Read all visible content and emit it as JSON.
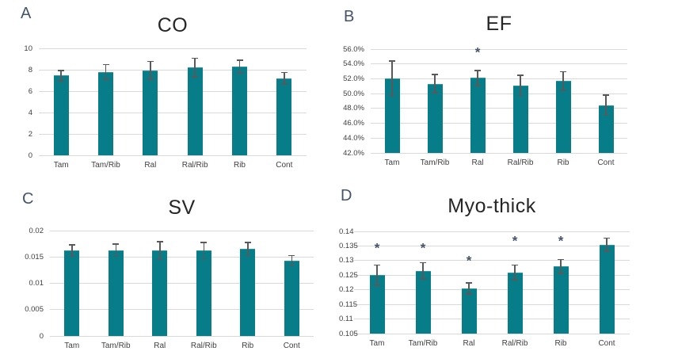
{
  "figure": {
    "background": "#ffffff",
    "colors": {
      "bar_fill": "#067d88",
      "error_bar": "#595959",
      "gridline": "#d9d9d9",
      "axis_text": "#404040",
      "title_text": "#262626",
      "panel_label": "#44546a",
      "asterisk": "#44546a"
    }
  },
  "chart_data": [
    {
      "type": "bar",
      "panel": "A",
      "title": "CO",
      "categories": [
        "Tam",
        "Tam/Rib",
        "Ral",
        "Ral/Rib",
        "Rib",
        "Cont"
      ],
      "values": [
        7.45,
        7.8,
        7.95,
        8.2,
        8.3,
        7.2
      ],
      "errors": [
        0.5,
        0.7,
        0.85,
        0.9,
        0.6,
        0.55
      ],
      "sig": [
        null,
        null,
        null,
        null,
        null,
        null
      ],
      "ylim": [
        0,
        10
      ],
      "yticks": [
        "0",
        "2",
        "4",
        "6",
        "8",
        "10"
      ],
      "xlabel": "",
      "ylabel": "",
      "grid": true,
      "legend": "none"
    },
    {
      "type": "bar",
      "panel": "B",
      "title": "EF",
      "categories": [
        "Tam",
        "Tam/Rib",
        "Ral",
        "Ral/Rib",
        "Rib",
        "Cont"
      ],
      "values": [
        52.0,
        51.35,
        52.1,
        51.1,
        51.7,
        48.45
      ],
      "errors": [
        2.4,
        1.25,
        1.05,
        1.4,
        1.3,
        1.4
      ],
      "sig": [
        null,
        null,
        55.5,
        null,
        null,
        null
      ],
      "ylim": [
        42,
        56
      ],
      "yticks": [
        "42.0%",
        "44.0%",
        "46.0%",
        "48.0%",
        "50.0%",
        "52.0%",
        "54.0%",
        "56.0%"
      ],
      "xlabel": "",
      "ylabel": "",
      "grid": true,
      "legend": "none"
    },
    {
      "type": "bar",
      "panel": "C",
      "title": "SV",
      "categories": [
        "Tam",
        "Tam/Rib",
        "Ral",
        "Ral/Rib",
        "Rib",
        "Cont"
      ],
      "values": [
        0.0162,
        0.0163,
        0.0162,
        0.0162,
        0.0165,
        0.0143
      ],
      "errors": [
        0.0011,
        0.0012,
        0.0017,
        0.0016,
        0.0013,
        0.001
      ],
      "sig": [
        null,
        null,
        null,
        null,
        null,
        null
      ],
      "ylim": [
        0,
        0.02
      ],
      "yticks": [
        "0",
        "0.005",
        "0.01",
        "0.015",
        "0.02"
      ],
      "xlabel": "",
      "ylabel": "",
      "grid": true,
      "legend": "none"
    },
    {
      "type": "bar",
      "panel": "D",
      "title": "Myo-thick",
      "categories": [
        "Tam",
        "Tam/Rib",
        "Ral",
        "Ral/Rib",
        "Rib",
        "Cont"
      ],
      "values": [
        0.125,
        0.1265,
        0.1205,
        0.126,
        0.128,
        0.1355
      ],
      "errors": [
        0.0035,
        0.0028,
        0.002,
        0.0026,
        0.0024,
        0.0023
      ],
      "sig": [
        0.134,
        0.134,
        0.1298,
        0.1365,
        0.1365,
        null
      ],
      "ylim": [
        0.105,
        0.14
      ],
      "yticks": [
        "0.105",
        "0.11",
        "0.115",
        "0.12",
        "0.125",
        "0.13",
        "0.135",
        "0.14"
      ],
      "xlabel": "",
      "ylabel": "",
      "grid": true,
      "legend": "none"
    }
  ]
}
